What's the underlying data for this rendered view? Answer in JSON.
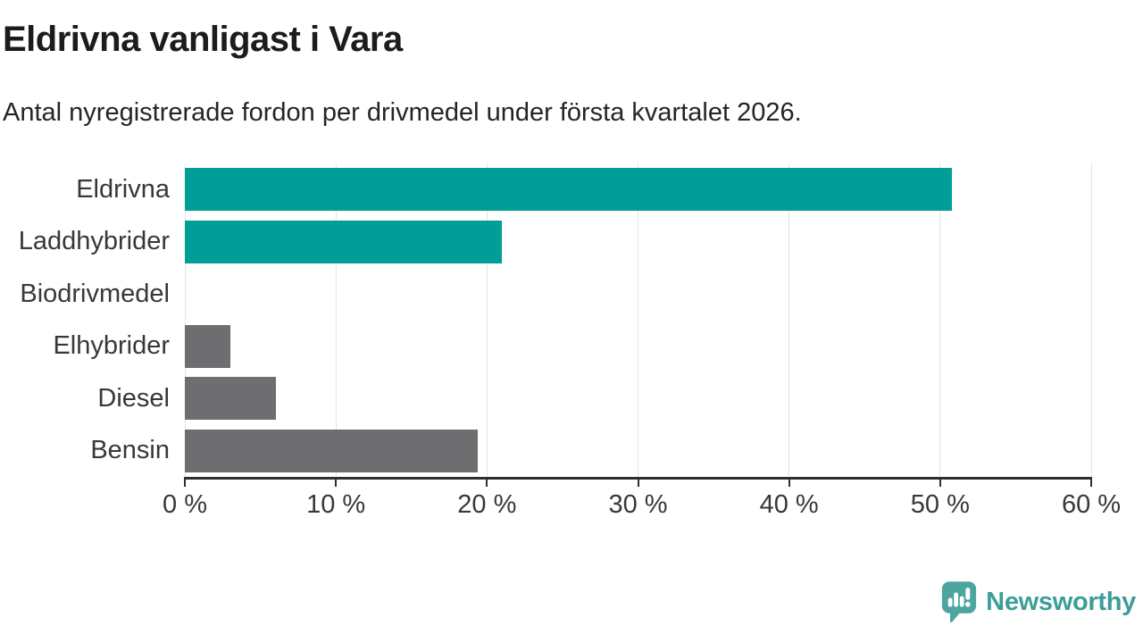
{
  "chart_data": {
    "type": "bar",
    "orientation": "horizontal",
    "title": "Eldrivna vanligast i Vara",
    "subtitle": "Antal nyregistrerade fordon per drivmedel under första kvartalet 2026.",
    "categories": [
      "Eldrivna",
      "Laddhybrider",
      "Biodrivmedel",
      "Elhybrider",
      "Diesel",
      "Bensin"
    ],
    "values": [
      50.8,
      21,
      0,
      3,
      6,
      19.4
    ],
    "unit": "%",
    "bar_colors": [
      "#009e96",
      "#009e96",
      "#009e96",
      "#6e6e70",
      "#6e6e70",
      "#6e6e70"
    ],
    "xlim": [
      0,
      60
    ],
    "x_tick_values": [
      0,
      10,
      20,
      30,
      40,
      50,
      60
    ],
    "x_tick_labels": [
      "0 %",
      "10 %",
      "20 %",
      "30 %",
      "40 %",
      "50 %",
      "60 %"
    ],
    "grid": true,
    "grid_color": "#e4e4e4",
    "axis_color": "#2f2f2f",
    "label_color": "#383838",
    "legend": "none"
  },
  "footer": {
    "brand": "Newsworthy",
    "brand_color": "#3d9e97",
    "icon": "newsworthy-speech-bubble-bar-chart-icon",
    "icon_color": "#4ca69f"
  }
}
